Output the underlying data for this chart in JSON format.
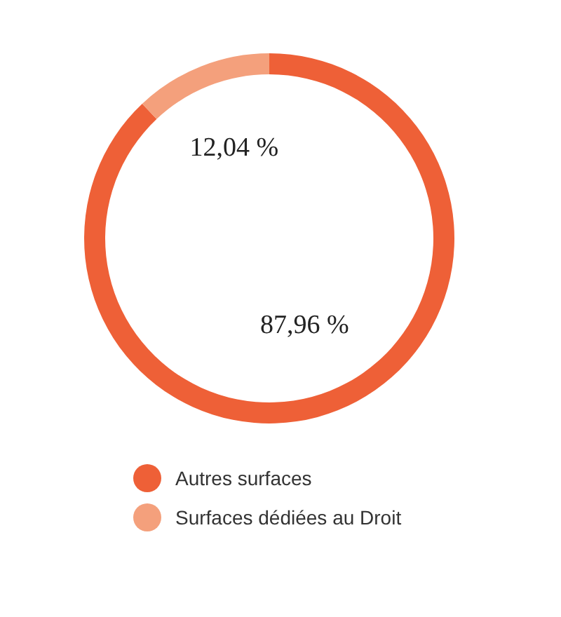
{
  "chart_data": {
    "type": "donut",
    "categories": [
      "Autres surfaces",
      "Surfaces dédiées au Droit"
    ],
    "values": [
      87.96,
      12.04
    ],
    "colors": [
      "#ee6037",
      "#f4a07c"
    ],
    "value_labels": [
      "87,96 %",
      "12,04 %"
    ],
    "legend": "bottom"
  }
}
